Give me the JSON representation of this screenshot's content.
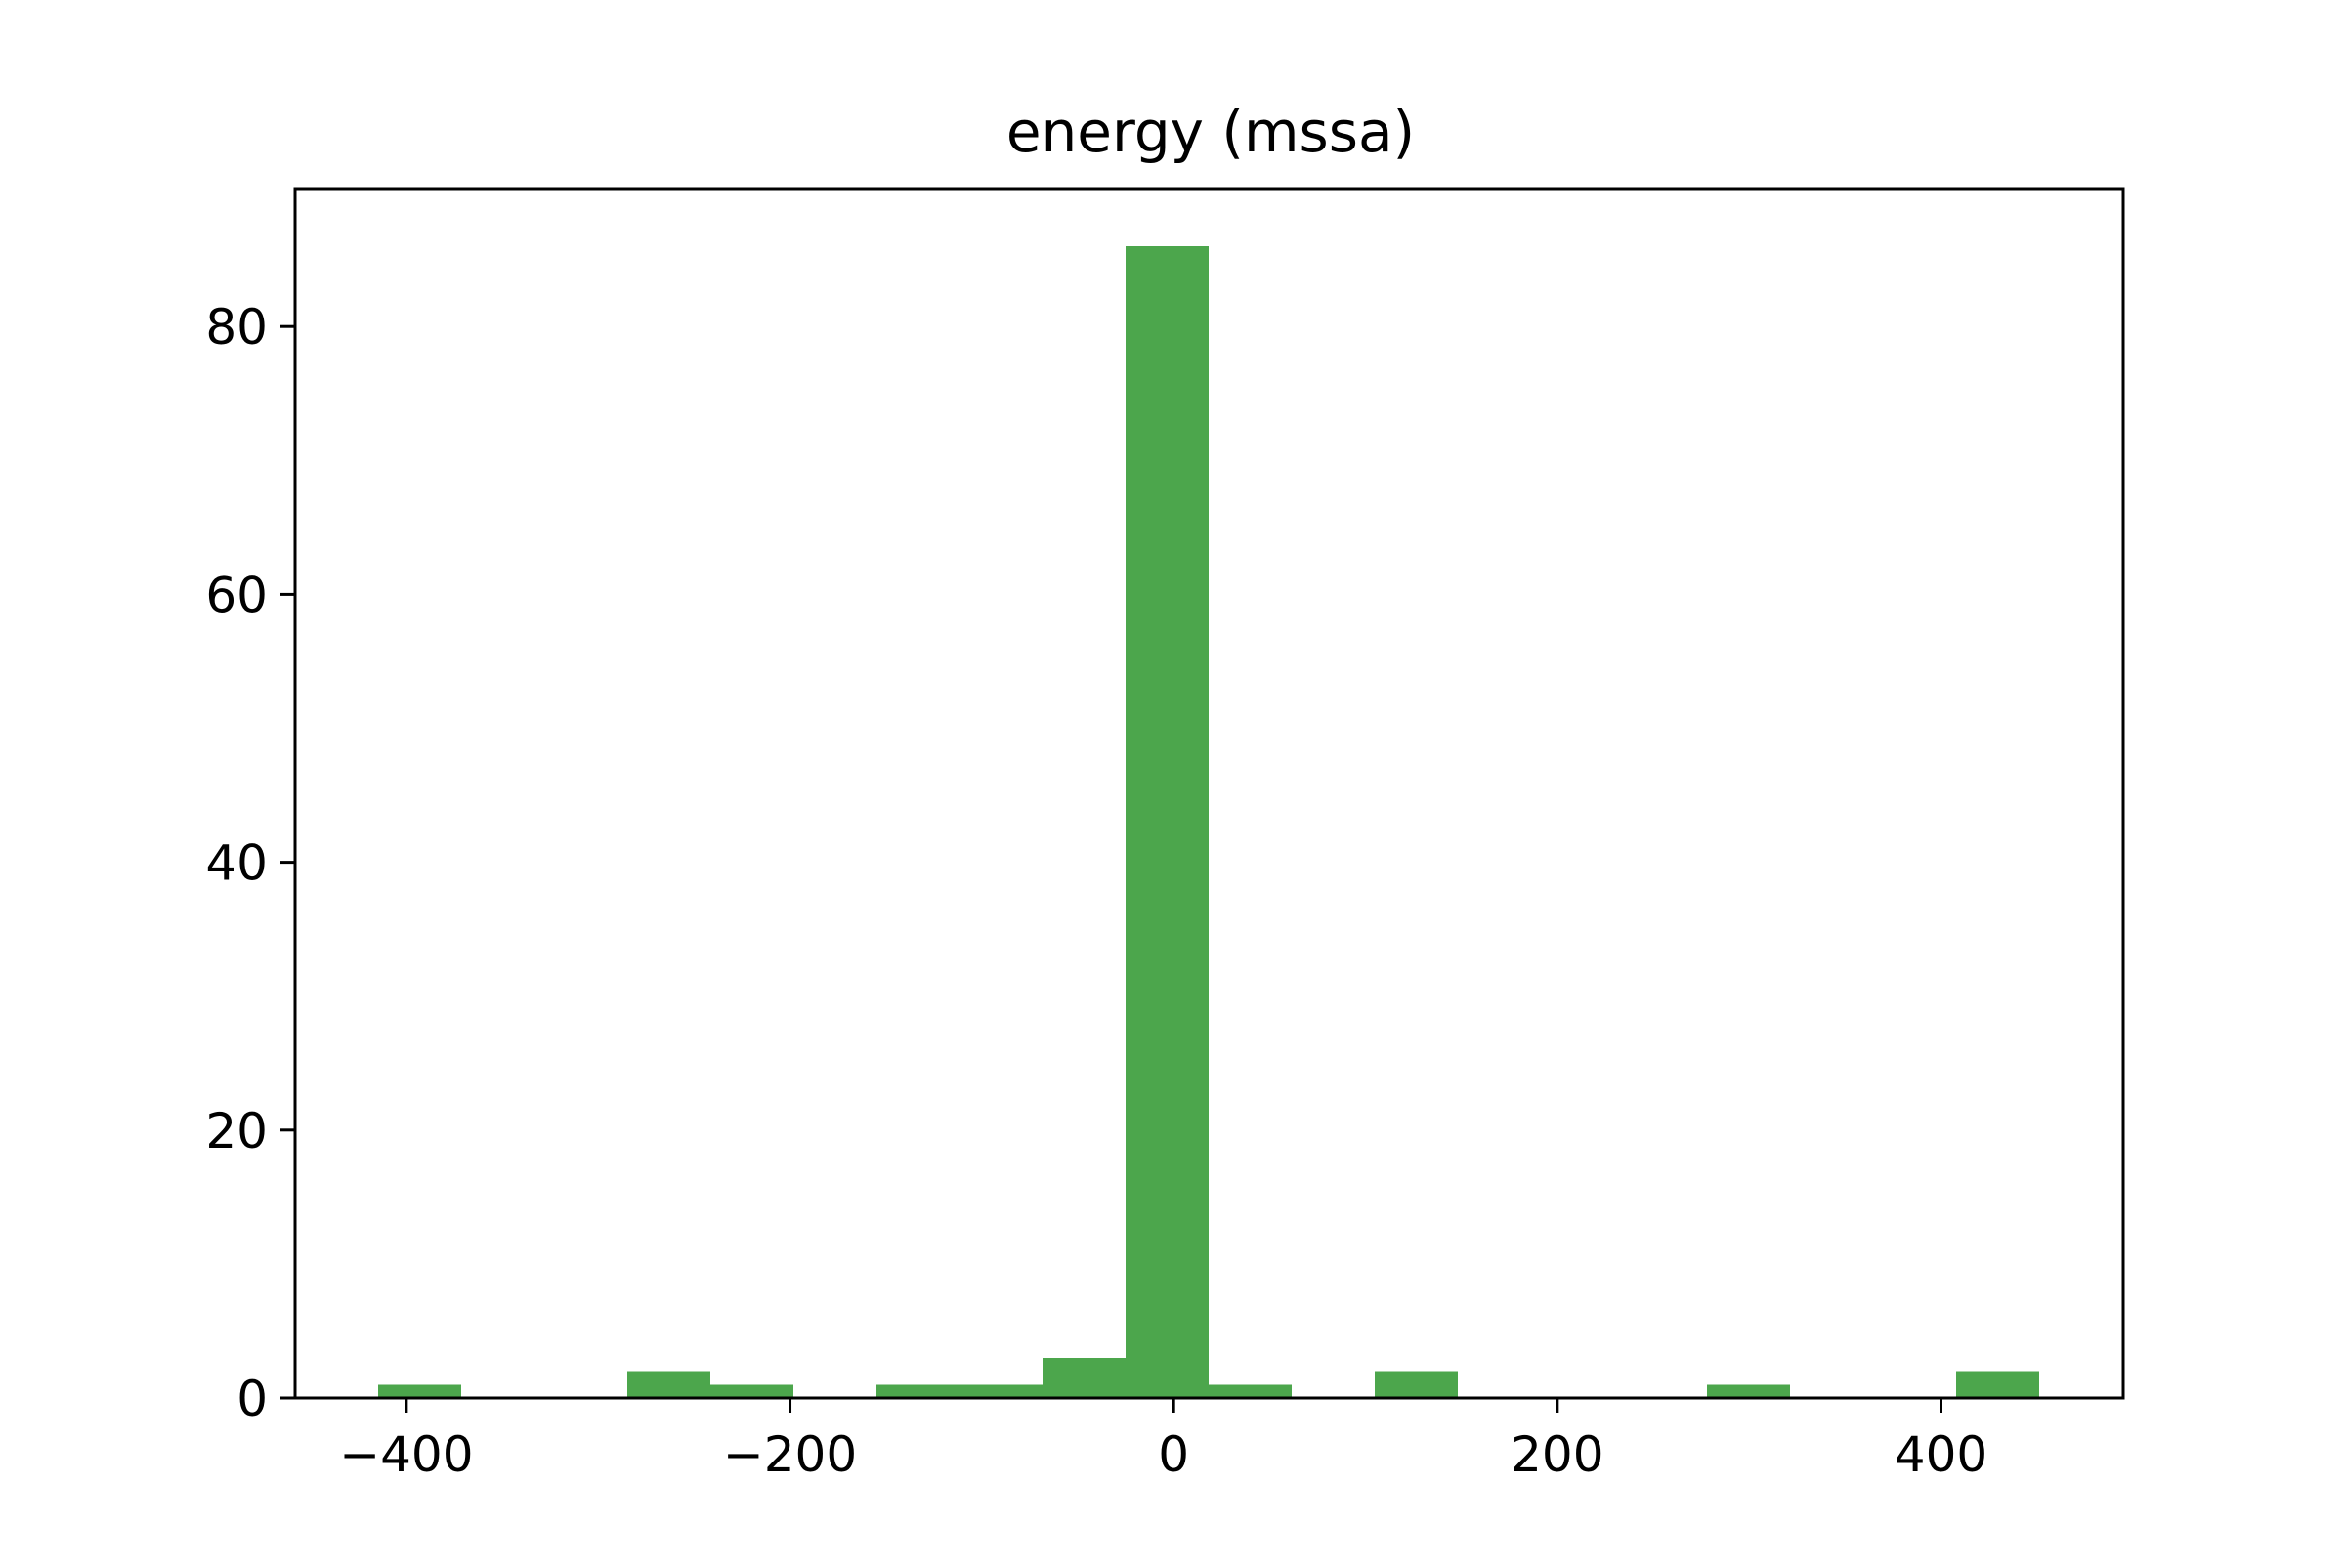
{
  "chart_data": {
    "type": "bar",
    "title": "energy (mssa)",
    "xlabel": "",
    "ylabel": "",
    "xlim": [
      -458,
      495
    ],
    "ylim": [
      0,
      90.3
    ],
    "grid": false,
    "legend": null,
    "bar_color": "#4ca64c",
    "x_ticks": [
      {
        "value": -400,
        "label": "−400"
      },
      {
        "value": -200,
        "label": "−200"
      },
      {
        "value": 0,
        "label": "0"
      },
      {
        "value": 200,
        "label": "200"
      },
      {
        "value": 400,
        "label": "400"
      }
    ],
    "y_ticks": [
      {
        "value": 0,
        "label": "0"
      },
      {
        "value": 20,
        "label": "20"
      },
      {
        "value": 40,
        "label": "40"
      },
      {
        "value": 60,
        "label": "60"
      },
      {
        "value": 80,
        "label": "80"
      }
    ],
    "bins": [
      {
        "x0": -414.7,
        "x1": -371.4,
        "count": 1
      },
      {
        "x0": -371.4,
        "x1": -328.1,
        "count": 0
      },
      {
        "x0": -328.1,
        "x1": -284.8,
        "count": 0
      },
      {
        "x0": -284.8,
        "x1": -241.5,
        "count": 2
      },
      {
        "x0": -241.5,
        "x1": -198.2,
        "count": 1
      },
      {
        "x0": -198.2,
        "x1": -154.9,
        "count": 0
      },
      {
        "x0": -154.9,
        "x1": -111.6,
        "count": 1
      },
      {
        "x0": -111.6,
        "x1": -68.3,
        "count": 1
      },
      {
        "x0": -68.3,
        "x1": -25.0,
        "count": 3
      },
      {
        "x0": -25.0,
        "x1": 18.3,
        "count": 86
      },
      {
        "x0": 18.3,
        "x1": 61.6,
        "count": 1
      },
      {
        "x0": 61.6,
        "x1": 104.9,
        "count": 0
      },
      {
        "x0": 104.9,
        "x1": 148.2,
        "count": 2
      },
      {
        "x0": 148.2,
        "x1": 191.5,
        "count": 0
      },
      {
        "x0": 191.5,
        "x1": 234.8,
        "count": 0
      },
      {
        "x0": 234.8,
        "x1": 278.1,
        "count": 0
      },
      {
        "x0": 278.1,
        "x1": 321.4,
        "count": 1
      },
      {
        "x0": 321.4,
        "x1": 364.7,
        "count": 0
      },
      {
        "x0": 364.7,
        "x1": 408.0,
        "count": 0
      },
      {
        "x0": 408.0,
        "x1": 451.3,
        "count": 2
      }
    ]
  }
}
